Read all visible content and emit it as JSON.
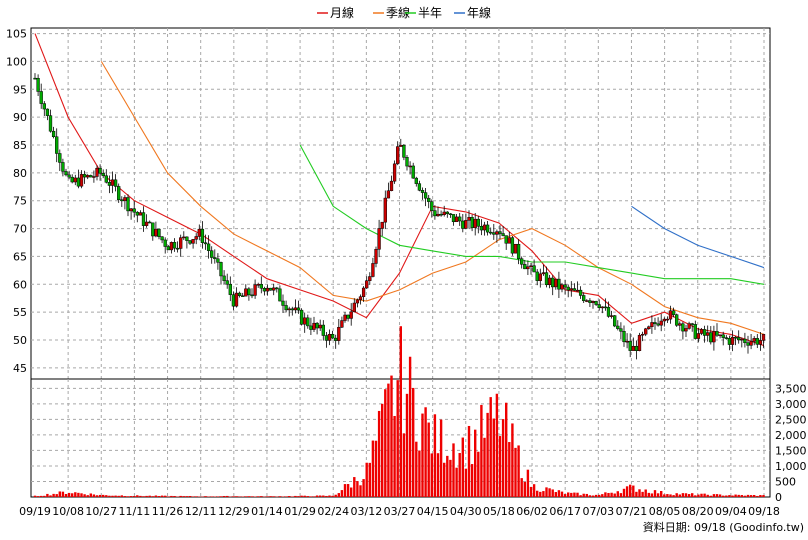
{
  "chart_data": {
    "type": "candlestick",
    "legend": [
      {
        "name": "月線",
        "color": "#e01818"
      },
      {
        "name": "季線",
        "color": "#f07820"
      },
      {
        "name": "半年",
        "color": "#22cc22"
      },
      {
        "name": "年線",
        "color": "#3070c8"
      }
    ],
    "price_axis": {
      "ylim": [
        43,
        106
      ],
      "ticks": [
        45,
        50,
        55,
        60,
        65,
        70,
        75,
        80,
        85,
        90,
        95,
        100,
        105
      ]
    },
    "volume_axis": {
      "ylim": [
        0,
        3800
      ],
      "ticks": [
        "0",
        "500",
        "1,000",
        "1,500",
        "2,000",
        "2,500",
        "3,000",
        "3,500"
      ]
    },
    "x_tick_labels": [
      "09/19",
      "10/08",
      "10/27",
      "11/11",
      "11/26",
      "12/11",
      "12/29",
      "01/14",
      "01/29",
      "02/24",
      "03/12",
      "03/27",
      "04/15",
      "04/30",
      "05/18",
      "06/02",
      "06/17",
      "07/03",
      "07/21",
      "08/05",
      "08/20",
      "09/04",
      "09/18"
    ],
    "close_anchors": {
      "x": [
        "09/19",
        "10/08",
        "10/27",
        "11/11",
        "11/26",
        "12/11",
        "12/29",
        "01/14",
        "01/29",
        "02/24",
        "03/12",
        "03/27",
        "04/15",
        "04/30",
        "05/18",
        "06/02",
        "06/17",
        "07/03",
        "07/21",
        "08/05",
        "08/20",
        "09/04",
        "09/18"
      ],
      "y": [
        97,
        78,
        80,
        73,
        67,
        69,
        57,
        60,
        54,
        50,
        60,
        85,
        73,
        71,
        70,
        62,
        59,
        57,
        48,
        55,
        51,
        50,
        50
      ]
    },
    "moving_averages": [
      {
        "name": "月線",
        "x": [
          "09/19",
          "10/08",
          "10/27",
          "11/11",
          "11/26",
          "12/11",
          "12/29",
          "01/14",
          "01/29",
          "02/24",
          "03/12",
          "03/27",
          "04/15",
          "04/30",
          "05/18",
          "06/02",
          "06/17",
          "07/03",
          "07/21",
          "08/05",
          "08/20",
          "09/04",
          "09/18"
        ],
        "y": [
          105,
          90,
          80,
          75,
          72,
          69,
          65,
          61,
          59,
          57,
          54,
          62,
          74,
          73,
          71,
          66,
          59,
          58,
          53,
          55,
          52,
          51,
          49
        ]
      },
      {
        "name": "季線",
        "x": [
          "10/27",
          "11/11",
          "11/26",
          "12/11",
          "12/29",
          "01/14",
          "01/29",
          "02/24",
          "03/12",
          "03/27",
          "04/15",
          "04/30",
          "05/18",
          "06/02",
          "06/17",
          "07/03",
          "07/21",
          "08/05",
          "08/20",
          "09/04",
          "09/18"
        ],
        "y": [
          100,
          90,
          80,
          74,
          69,
          66,
          63,
          58,
          57,
          59,
          62,
          64,
          68,
          70,
          67,
          63,
          60,
          56,
          54,
          53,
          51
        ]
      },
      {
        "name": "半年",
        "x": [
          "01/29",
          "02/24",
          "03/12",
          "03/27",
          "04/15",
          "04/30",
          "05/18",
          "06/02",
          "06/17",
          "07/03",
          "07/21",
          "08/05",
          "08/20",
          "09/04",
          "09/18"
        ],
        "y": [
          85,
          74,
          70,
          67,
          66,
          65,
          65,
          64,
          64,
          63,
          62,
          61,
          61,
          61,
          60
        ]
      },
      {
        "name": "年線",
        "x": [
          "07/21",
          "08/05",
          "08/20",
          "09/04",
          "09/18"
        ],
        "y": [
          74,
          70,
          67,
          65,
          63
        ]
      }
    ],
    "volume_bars": {
      "x": [
        "09/19",
        "10/08",
        "10/27",
        "11/11",
        "11/26",
        "12/11",
        "12/29",
        "01/14",
        "01/29",
        "02/24",
        "03/12",
        "03/27",
        "04/15",
        "04/30",
        "05/18",
        "06/02",
        "06/17",
        "07/03",
        "07/21",
        "08/05",
        "08/20",
        "09/04",
        "09/18"
      ],
      "values": [
        30,
        160,
        60,
        40,
        30,
        20,
        25,
        20,
        30,
        40,
        800,
        3900,
        1900,
        1600,
        2600,
        350,
        120,
        60,
        300,
        120,
        80,
        60,
        50
      ]
    }
  },
  "source_note": "資料日期: 09/18 (Goodinfo.tw)"
}
